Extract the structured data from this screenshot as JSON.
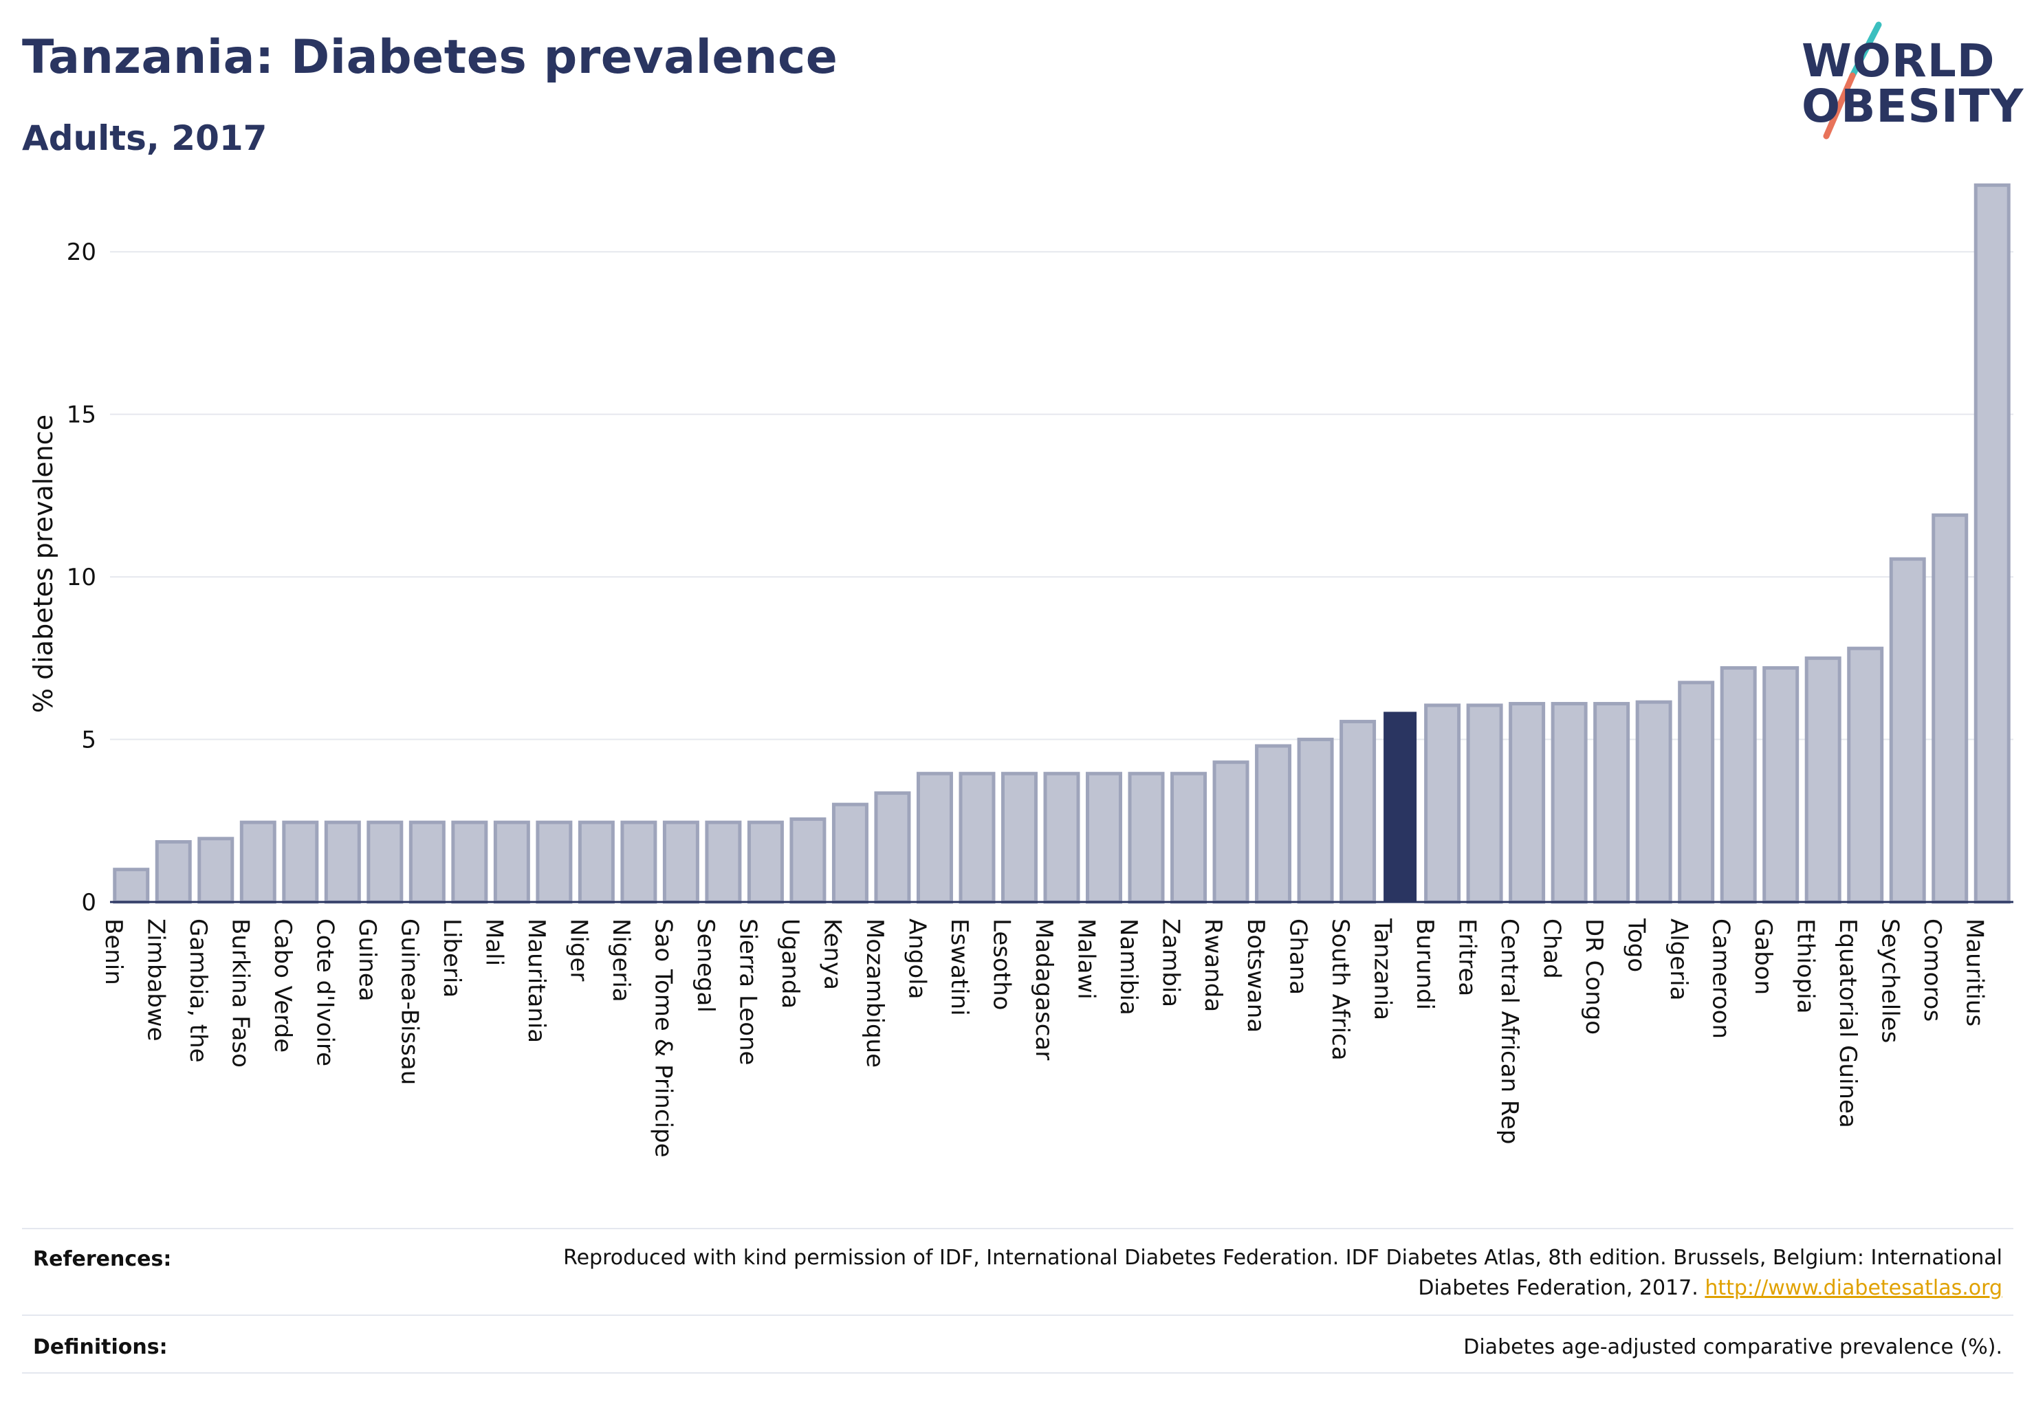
{
  "header": {
    "title": "Tanzania: Diabetes prevalence",
    "subtitle": "Adults, 2017"
  },
  "logo": {
    "line1": "WORLD",
    "line2": "OBESITY",
    "accent_colors": [
      "#3bbfbf",
      "#e8735a"
    ]
  },
  "colors": {
    "bar": "#bfc3d2",
    "bar_stroke": "#9ea4bb",
    "highlight": "#2a3561",
    "grid": "#e6e8ee",
    "axis": "#2a3561"
  },
  "chart_data": {
    "type": "bar",
    "ylabel": "% diabetes prevalence",
    "xlabel": "",
    "ylim": [
      0,
      22.5
    ],
    "yticks": [
      0,
      5,
      10,
      15,
      20
    ],
    "grid": "horizontal",
    "highlight": "Tanzania",
    "categories": [
      "Benin",
      "Zimbabwe",
      "Gambia, the",
      "Burkina Faso",
      "Cabo Verde",
      "Cote d'Ivoire",
      "Guinea",
      "Guinea-Bissau",
      "Liberia",
      "Mali",
      "Mauritania",
      "Niger",
      "Nigeria",
      "Sao Tome & Principe",
      "Senegal",
      "Sierra Leone",
      "Uganda",
      "Kenya",
      "Mozambique",
      "Angola",
      "Eswatini",
      "Lesotho",
      "Madagascar",
      "Malawi",
      "Namibia",
      "Zambia",
      "Rwanda",
      "Botswana",
      "Ghana",
      "South Africa",
      "Tanzania",
      "Burundi",
      "Eritrea",
      "Central African Rep",
      "Chad",
      "DR Congo",
      "Togo",
      "Algeria",
      "Cameroon",
      "Gabon",
      "Ethiopia",
      "Equatorial Guinea",
      "Seychelles",
      "Comoros",
      "Mauritius"
    ],
    "values": [
      1.0,
      1.85,
      1.95,
      2.45,
      2.45,
      2.45,
      2.45,
      2.45,
      2.45,
      2.45,
      2.45,
      2.45,
      2.45,
      2.45,
      2.45,
      2.45,
      2.55,
      3.0,
      3.35,
      3.95,
      3.95,
      3.95,
      3.95,
      3.95,
      3.95,
      3.95,
      4.3,
      4.8,
      5.0,
      5.55,
      5.85,
      6.05,
      6.05,
      6.1,
      6.1,
      6.1,
      6.15,
      6.75,
      7.2,
      7.2,
      7.5,
      7.8,
      10.55,
      11.9,
      22.05
    ]
  },
  "footer": {
    "references_label": "References:",
    "references_text": "Reproduced with kind permission of IDF, International Diabetes Federation. IDF Diabetes Atlas, 8th edition. Brussels, Belgium: International Diabetes Federation, 2017.",
    "references_link": "http://www.diabetesatlas.org",
    "definitions_label": "Definitions:",
    "definitions_text": "Diabetes age-adjusted comparative prevalence (%)."
  }
}
